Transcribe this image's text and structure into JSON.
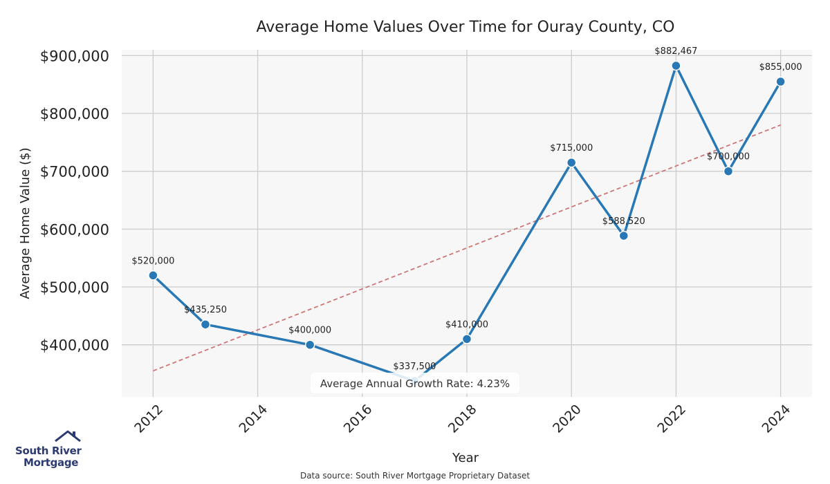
{
  "chart_data": {
    "type": "line",
    "title": "Average Home Values Over Time for Ouray County, CO",
    "xlabel": "Year",
    "ylabel": "Average Home Value ($)",
    "x": [
      2012,
      2013,
      2015,
      2017,
      2018,
      2020,
      2021,
      2022,
      2023,
      2024
    ],
    "series": [
      {
        "values": [
          520000,
          435250,
          400000,
          337500,
          410000,
          715000,
          588520,
          882467,
          700000,
          855000
        ],
        "data_labels": [
          "$520,000",
          "$435,250",
          "$400,000",
          "$337,500",
          "$410,000",
          "$715,000",
          "$588,520",
          "$882,467",
          "$700,000",
          "$855,000"
        ],
        "color": "#2878b5"
      }
    ],
    "trendline": {
      "style": "dashed",
      "color": "#d07575",
      "start": [
        2012,
        355000
      ],
      "end": [
        2024,
        780000
      ]
    },
    "xticks": [
      2012,
      2014,
      2016,
      2018,
      2020,
      2022,
      2024
    ],
    "xtick_labels": [
      "2012",
      "2014",
      "2016",
      "2018",
      "2020",
      "2022",
      "2024"
    ],
    "yticks": [
      400000,
      500000,
      600000,
      700000,
      800000,
      900000
    ],
    "ytick_labels": [
      "$400,000",
      "$500,000",
      "$600,000",
      "$700,000",
      "$800,000",
      "$900,000"
    ],
    "xlim": [
      2011.4,
      2024.6
    ],
    "ylim": [
      310000,
      910000
    ],
    "grid": true,
    "annotation": "Average Annual Growth Rate: 4.23%"
  },
  "branding": {
    "logo_line1": "South River",
    "logo_line2": "Mortgage",
    "logo_color": "#2b3a70"
  },
  "footer": {
    "source": "Data source: South River Mortgage Proprietary Dataset"
  }
}
